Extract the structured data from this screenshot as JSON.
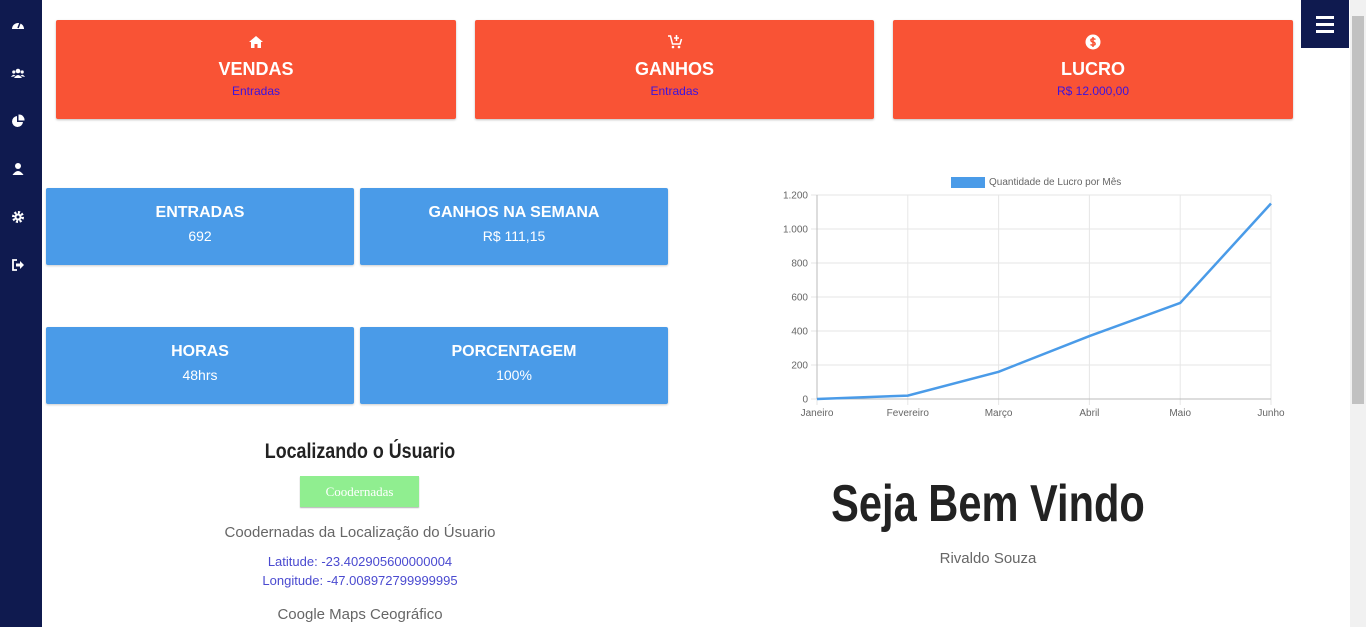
{
  "cards": [
    {
      "title": "VENDAS",
      "subtitle": "Entradas"
    },
    {
      "title": "GANHOS",
      "subtitle": "Entradas"
    },
    {
      "title": "LUCRO",
      "subtitle": "R$ 12.000,00"
    }
  ],
  "stats": [
    {
      "title": "ENTRADAS",
      "value": "692"
    },
    {
      "title": "GANHOS NA SEMANA",
      "value": "R$ 111,15"
    },
    {
      "title": "HORAS",
      "value": "48hrs"
    },
    {
      "title": "PORCENTAGEM",
      "value": "100%"
    }
  ],
  "chart_data": {
    "type": "line",
    "categories": [
      "Janeiro",
      "Fevereiro",
      "Março",
      "Abril",
      "Maio",
      "Junho"
    ],
    "series": [
      {
        "name": "Quantidade de Lucro por Mês",
        "color": "#4a9be8",
        "values": [
          0,
          20,
          160,
          370,
          565,
          1150
        ]
      }
    ],
    "ylim": [
      0,
      1200
    ],
    "yticks": [
      0,
      200,
      400,
      600,
      800,
      {
        "value": 1000,
        "label": "1.000"
      },
      {
        "value": 1200,
        "label": "1.200"
      }
    ],
    "grid": true
  },
  "location": {
    "title": "Localizando o Úsuario",
    "button": "Coodernadas",
    "subtitle": "Coodernadas da Localização do Úsuario",
    "latitude": "Latitude: -23.402905600000004",
    "longitude": "Longitude: -47.008972799999995",
    "maps": "Coogle Maps Ceográfico"
  },
  "welcome": {
    "title": "Seja Bem Vindo",
    "name": "Rivaldo Souza"
  }
}
